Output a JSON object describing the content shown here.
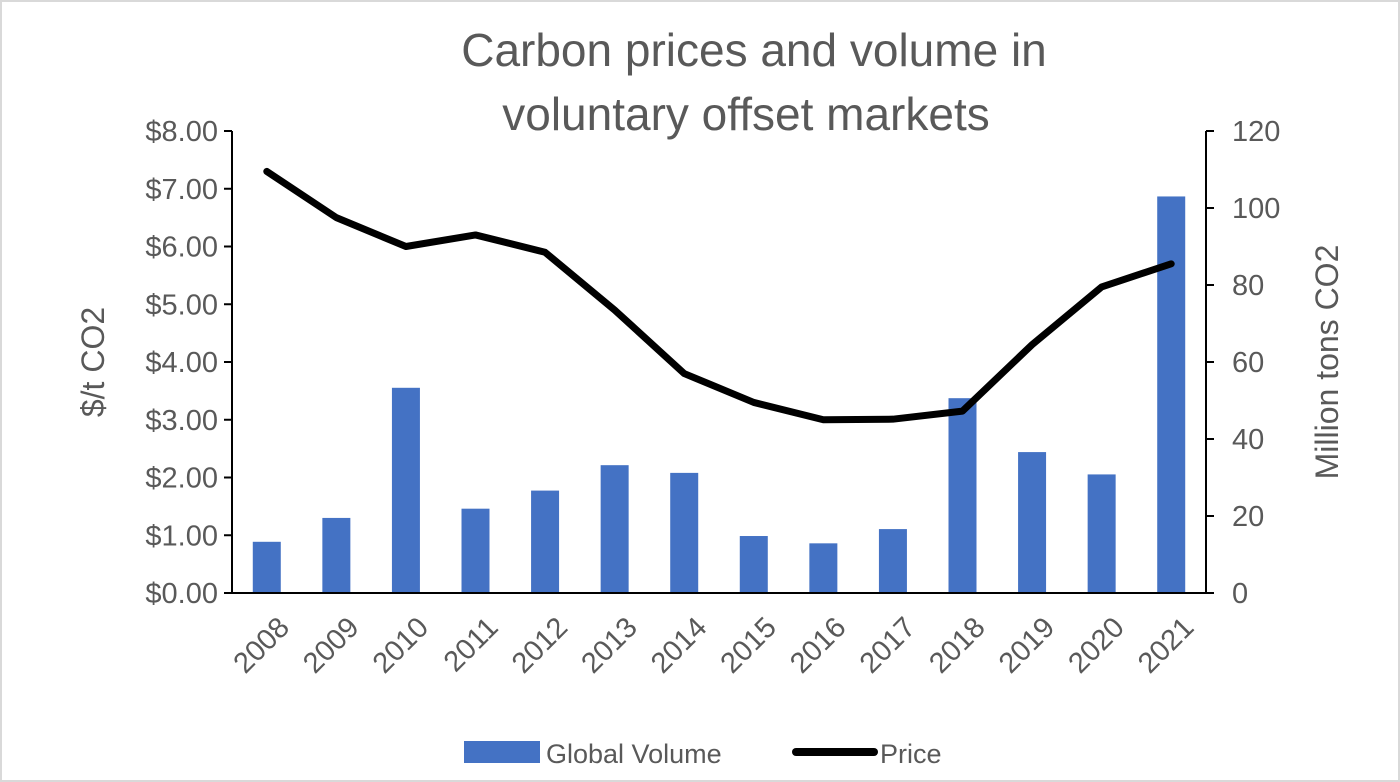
{
  "chart_data": {
    "type": "bar+line",
    "title_lines": [
      "Carbon prices and volume in",
      "voluntary offset markets"
    ],
    "categories": [
      "2008",
      "2009",
      "2010",
      "2011",
      "2012",
      "2013",
      "2014",
      "2015",
      "2016",
      "2017",
      "2018",
      "2019",
      "2020",
      "2021"
    ],
    "series": [
      {
        "name": "Global Volume",
        "type": "bar",
        "axis": "right",
        "color": "#4472c4",
        "values": [
          13.3,
          19.5,
          53.3,
          21.9,
          26.6,
          33.2,
          31.2,
          14.8,
          12.9,
          16.6,
          50.6,
          36.6,
          30.8,
          103.0
        ]
      },
      {
        "name": "Price",
        "type": "line",
        "axis": "left",
        "color": "#000000",
        "values": [
          7.3,
          6.5,
          6.0,
          6.2,
          5.9,
          4.9,
          3.8,
          3.3,
          3.0,
          3.01,
          3.15,
          4.3,
          5.3,
          5.7
        ]
      }
    ],
    "y_left": {
      "label": "$/t CO2",
      "min": 0,
      "max": 8,
      "ticks": [
        "$0.00",
        "$1.00",
        "$2.00",
        "$3.00",
        "$4.00",
        "$5.00",
        "$6.00",
        "$7.00",
        "$8.00"
      ]
    },
    "y_right": {
      "label": "Million tons CO2",
      "min": 0,
      "max": 120,
      "ticks": [
        "0",
        "20",
        "40",
        "60",
        "80",
        "100",
        "120"
      ]
    },
    "legend": {
      "position": "bottom",
      "items": [
        "Global Volume",
        "Price"
      ]
    },
    "grid": false
  }
}
